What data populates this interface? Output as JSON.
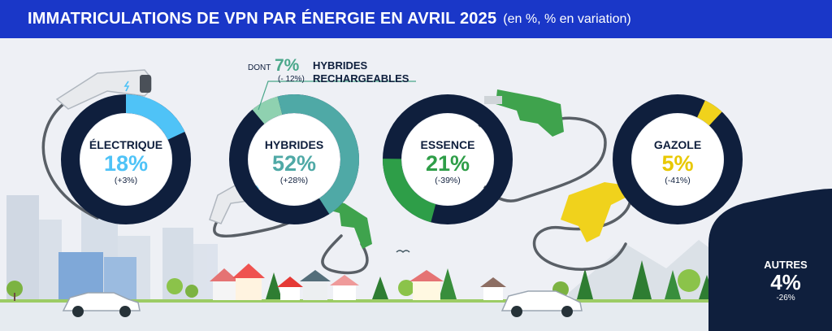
{
  "header": {
    "title": "IMMATRICULATIONS DE VPN PAR ÉNERGIE EN AVRIL 2025",
    "subtitle": "(en %, % en variation)"
  },
  "colors": {
    "header_bg": "#1a37c8",
    "navy": "#0f1f3d",
    "electrique": "#4fc3f7",
    "hybrides": "#4fa9a6",
    "hybrides_rechargeables": "#8fd1b0",
    "essence": "#2e9e48",
    "gazole": "#f0d21c"
  },
  "rings": {
    "electrique": {
      "name": "ÉLECTRIQUE",
      "pct": "18%",
      "change": "(+3%)"
    },
    "hybrides": {
      "name": "HYBRIDES",
      "pct": "52%",
      "change": "(+28%)"
    },
    "essence": {
      "name": "ESSENCE",
      "pct": "21%",
      "change": "(-39%)"
    },
    "gazole": {
      "name": "GAZOLE",
      "pct": "5%",
      "change": "(-41%)"
    }
  },
  "hybrid_note": {
    "prefix": "DONT",
    "pct": "7%",
    "change": "(- 12%)",
    "label_line1": "HYBRIDES",
    "label_line2": "RECHARGEABLES"
  },
  "autres": {
    "name": "AUTRES",
    "pct": "4%",
    "change": "-26%"
  },
  "chart_data": {
    "type": "pie",
    "title": "IMMATRICULATIONS DE VPN PAR ÉNERGIE EN AVRIL 2025",
    "subtitle": "(en %, % en variation)",
    "categories": [
      "ÉLECTRIQUE",
      "HYBRIDES",
      "ESSENCE",
      "GAZOLE",
      "AUTRES"
    ],
    "values": [
      18,
      52,
      21,
      5,
      4
    ],
    "changes": [
      3,
      28,
      -39,
      -41,
      -26
    ],
    "sub_values": [
      {
        "parent": "HYBRIDES",
        "name": "HYBRIDES RECHARGEABLES",
        "value": 7,
        "change": -12
      }
    ]
  }
}
